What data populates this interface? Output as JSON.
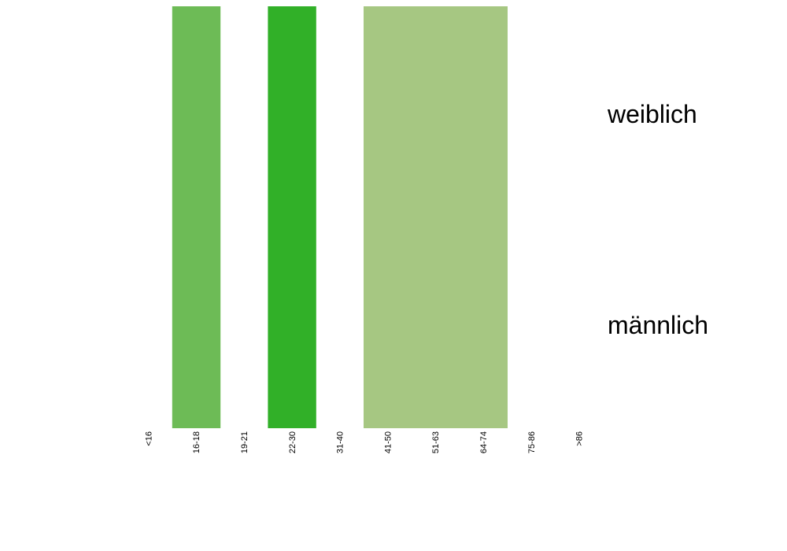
{
  "chart_data": {
    "type": "heatmap",
    "categories": [
      "<16",
      "16-18",
      "19-21",
      "22-30",
      "31-40",
      "41-50",
      "51-63",
      "64-74",
      "75-86",
      ">86"
    ],
    "rows": [
      "weiblich",
      "männlich"
    ],
    "cells": [
      {
        "category": "16-18",
        "color": "#6dbb56"
      },
      {
        "category": "22-30",
        "color": "#31b028"
      },
      {
        "category": "41-50",
        "color": "#a6c782"
      },
      {
        "category": "51-63",
        "color": "#a6c782"
      },
      {
        "category": "64-74",
        "color": "#a6c782"
      }
    ]
  }
}
